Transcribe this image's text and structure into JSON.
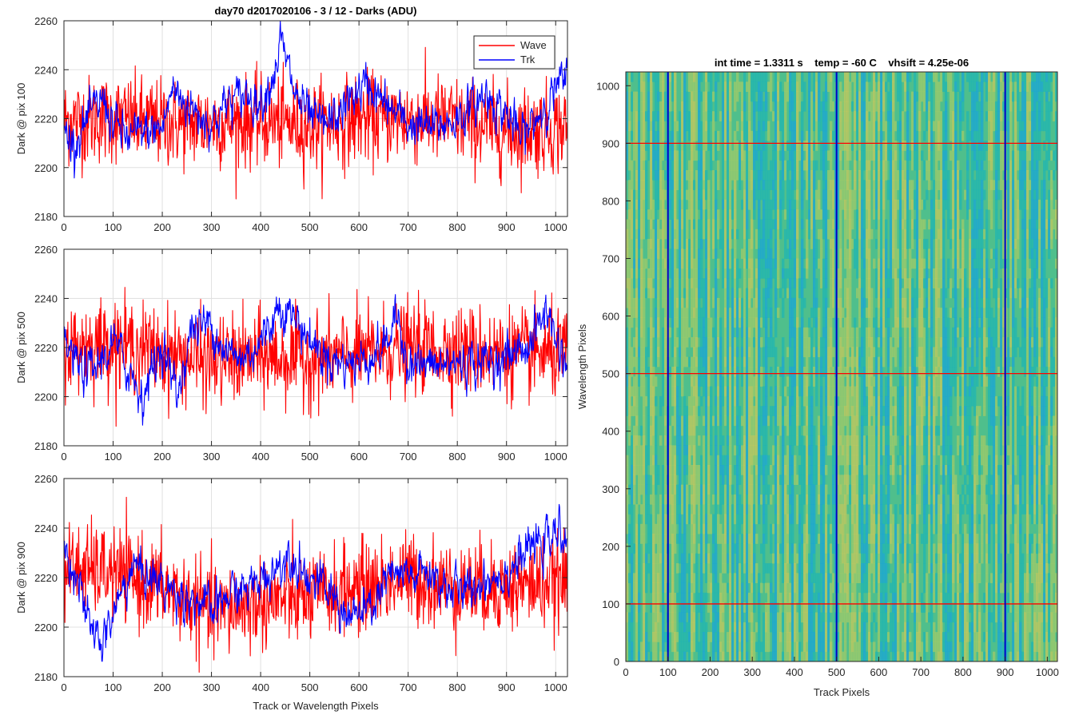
{
  "figure": {
    "background": "#ffffff"
  },
  "chart_data": [
    {
      "type": "line",
      "title": "day70 d2017020106 - 3 / 12 - Darks (ADU)",
      "xlabel": "",
      "ylabel": "Dark @ pix 100",
      "xlim": [
        0,
        1024
      ],
      "ylim": [
        2180,
        2260
      ],
      "xticks": [
        0,
        100,
        200,
        300,
        400,
        500,
        600,
        700,
        800,
        900,
        1000
      ],
      "yticks": [
        2180,
        2200,
        2220,
        2240,
        2260
      ],
      "grid": true,
      "legend": {
        "position": "top-right",
        "entries": [
          "Wave",
          "Trk"
        ]
      },
      "series": [
        {
          "name": "Wave",
          "color": "#ff0000",
          "mean": 2218,
          "noise": 9,
          "x_anchor": [
            0,
            100,
            200,
            300,
            400,
            500,
            600,
            700,
            800,
            900,
            1000,
            1024
          ],
          "y_anchor": [
            2219,
            2220,
            2218,
            2218,
            2219,
            2217,
            2220,
            2220,
            2219,
            2215,
            2216,
            2216
          ]
        },
        {
          "name": "Trk",
          "color": "#0000ff",
          "mean": 2220,
          "noise": 5,
          "x_anchor": [
            0,
            20,
            50,
            80,
            100,
            130,
            160,
            200,
            220,
            260,
            300,
            330,
            370,
            400,
            430,
            440,
            470,
            500,
            530,
            560,
            590,
            620,
            650,
            700,
            750,
            800,
            830,
            860,
            900,
            930,
            960,
            1000,
            1024
          ],
          "y_anchor": [
            2215,
            2210,
            2220,
            2228,
            2218,
            2212,
            2214,
            2216,
            2232,
            2224,
            2218,
            2226,
            2230,
            2227,
            2240,
            2252,
            2230,
            2220,
            2217,
            2222,
            2230,
            2234,
            2226,
            2218,
            2216,
            2220,
            2225,
            2230,
            2222,
            2212,
            2220,
            2232,
            2236
          ]
        }
      ]
    },
    {
      "type": "line",
      "title": "",
      "xlabel": "",
      "ylabel": "Dark @ pix 500",
      "xlim": [
        0,
        1024
      ],
      "ylim": [
        2180,
        2260
      ],
      "xticks": [
        0,
        100,
        200,
        300,
        400,
        500,
        600,
        700,
        800,
        900,
        1000
      ],
      "yticks": [
        2180,
        2200,
        2220,
        2240,
        2260
      ],
      "grid": true,
      "series": [
        {
          "name": "Wave",
          "color": "#ff0000",
          "mean": 2219,
          "noise": 9,
          "x_anchor": [
            0,
            100,
            200,
            300,
            400,
            500,
            600,
            700,
            800,
            900,
            1000,
            1024
          ],
          "y_anchor": [
            2220,
            2222,
            2218,
            2214,
            2216,
            2215,
            2217,
            2220,
            2219,
            2218,
            2217,
            2217
          ]
        },
        {
          "name": "Trk",
          "color": "#0000ff",
          "mean": 2218,
          "noise": 5,
          "x_anchor": [
            0,
            30,
            60,
            100,
            140,
            160,
            200,
            230,
            260,
            300,
            330,
            360,
            400,
            440,
            470,
            520,
            560,
            600,
            650,
            680,
            700,
            750,
            800,
            850,
            900,
            950,
            980,
            1000,
            1024
          ],
          "y_anchor": [
            2222,
            2212,
            2210,
            2222,
            2208,
            2200,
            2222,
            2200,
            2228,
            2230,
            2218,
            2215,
            2222,
            2238,
            2232,
            2218,
            2214,
            2214,
            2220,
            2232,
            2214,
            2212,
            2214,
            2214,
            2216,
            2222,
            2236,
            2224,
            2212
          ]
        }
      ]
    },
    {
      "type": "line",
      "title": "",
      "xlabel": "Track or Wavelength Pixels",
      "ylabel": "Dark @ pix 900",
      "xlim": [
        0,
        1024
      ],
      "ylim": [
        2180,
        2260
      ],
      "xticks": [
        0,
        100,
        200,
        300,
        400,
        500,
        600,
        700,
        800,
        900,
        1000
      ],
      "yticks": [
        2180,
        2200,
        2220,
        2240,
        2260
      ],
      "grid": true,
      "series": [
        {
          "name": "Wave",
          "color": "#ff0000",
          "mean": 2218,
          "noise": 9,
          "x_anchor": [
            0,
            100,
            200,
            300,
            400,
            500,
            600,
            700,
            800,
            900,
            1000,
            1024
          ],
          "y_anchor": [
            2224,
            2222,
            2216,
            2206,
            2210,
            2212,
            2216,
            2220,
            2216,
            2216,
            2218,
            2218
          ]
        },
        {
          "name": "Trk",
          "color": "#0000ff",
          "mean": 2220,
          "noise": 5,
          "x_anchor": [
            0,
            20,
            50,
            80,
            100,
            140,
            180,
            220,
            260,
            300,
            340,
            380,
            420,
            460,
            500,
            540,
            580,
            620,
            660,
            700,
            740,
            780,
            820,
            860,
            900,
            950,
            1000,
            1024
          ],
          "y_anchor": [
            2230,
            2226,
            2200,
            2194,
            2205,
            2225,
            2220,
            2214,
            2212,
            2206,
            2214,
            2216,
            2222,
            2230,
            2220,
            2214,
            2204,
            2206,
            2220,
            2220,
            2222,
            2216,
            2214,
            2220,
            2222,
            2232,
            2236,
            2240
          ]
        }
      ]
    },
    {
      "type": "heatmap",
      "title": "int time = 1.3311 s    temp = -60 C    vhsift = 4.25e-06",
      "xlabel": "Track Pixels",
      "ylabel": "Wavelength Pixels",
      "xlim": [
        0,
        1024
      ],
      "ylim": [
        0,
        1024
      ],
      "xticks": [
        0,
        100,
        200,
        300,
        400,
        500,
        600,
        700,
        800,
        900,
        1000
      ],
      "yticks": [
        0,
        100,
        200,
        300,
        400,
        500,
        600,
        700,
        800,
        900,
        1000
      ],
      "colormap": [
        "#1aa6d6",
        "#20b6b2",
        "#4fbf8c",
        "#9dc96a",
        "#c6c85c"
      ],
      "marker_lines": {
        "vertical_x": [
          100,
          500,
          900
        ],
        "vertical_color": "#0000c8",
        "horizontal_y": [
          100,
          500,
          900
        ],
        "horizontal_color": "#ff0000"
      }
    }
  ]
}
